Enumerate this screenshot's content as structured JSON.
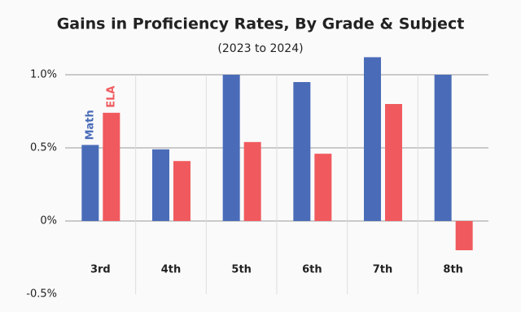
{
  "chart_data": {
    "type": "bar",
    "title": "Gains in Proficiency Rates, By Grade & Subject",
    "subtitle": "(2023 to 2024)",
    "categories": [
      "3rd",
      "4th",
      "5th",
      "6th",
      "7th",
      "8th"
    ],
    "series": [
      {
        "name": "Math",
        "color": "#4a6cb8",
        "values": [
          0.52,
          0.49,
          1.0,
          0.95,
          1.12,
          1.0
        ]
      },
      {
        "name": "ELA",
        "color": "#f05a5e",
        "values": [
          0.74,
          0.41,
          0.54,
          0.46,
          0.8,
          -0.2
        ]
      }
    ],
    "ylim": [
      -0.5,
      1.12
    ],
    "yticks": [
      {
        "value": -0.5,
        "label": "-0.5%"
      },
      {
        "value": 0,
        "label": "0%"
      },
      {
        "value": 0.5,
        "label": "0.5%"
      },
      {
        "value": 1.0,
        "label": "1.0%"
      }
    ],
    "grid": true
  }
}
